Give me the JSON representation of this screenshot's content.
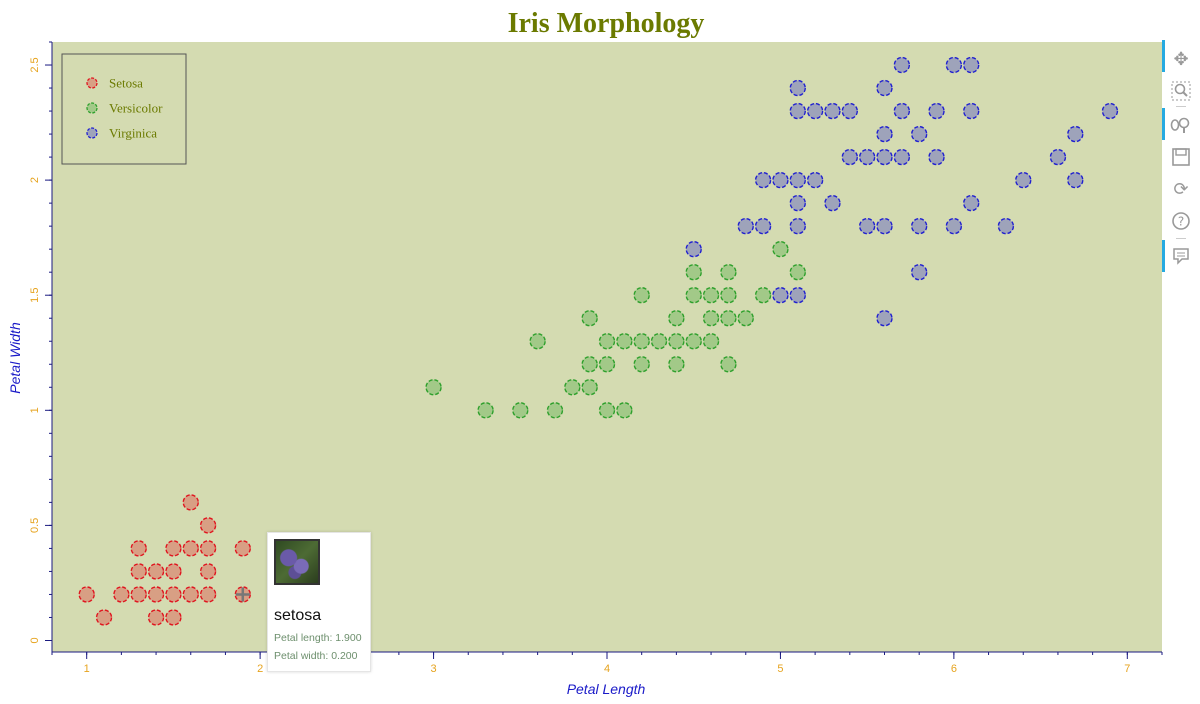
{
  "chart_data": {
    "type": "scatter",
    "title": "Iris Morphology",
    "xlabel": "Petal Length",
    "ylabel": "Petal Width",
    "xlim": [
      0.8,
      7.2
    ],
    "ylim": [
      -0.05,
      2.6
    ],
    "x_ticks": [
      1,
      2,
      3,
      4,
      5,
      6,
      7
    ],
    "y_ticks": [
      0,
      0.5,
      1,
      1.5,
      2,
      2.5
    ],
    "x_tick_labels": [
      "1",
      "2",
      "3",
      "4",
      "5",
      "6",
      "7"
    ],
    "y_tick_labels": [
      "0",
      "0.5",
      "1",
      "1.5",
      "2",
      "2.5"
    ],
    "grid": false,
    "legend_position": "top-left",
    "series": [
      {
        "name": "Setosa",
        "color": "#e0141e",
        "points": [
          [
            1.0,
            0.2
          ],
          [
            1.1,
            0.1
          ],
          [
            1.2,
            0.2
          ],
          [
            1.3,
            0.2
          ],
          [
            1.4,
            0.2
          ],
          [
            1.5,
            0.2
          ],
          [
            1.6,
            0.2
          ],
          [
            1.7,
            0.2
          ],
          [
            1.9,
            0.2
          ],
          [
            1.3,
            0.3
          ],
          [
            1.4,
            0.3
          ],
          [
            1.5,
            0.3
          ],
          [
            1.7,
            0.3
          ],
          [
            1.3,
            0.4
          ],
          [
            1.5,
            0.4
          ],
          [
            1.6,
            0.4
          ],
          [
            1.7,
            0.4
          ],
          [
            1.9,
            0.4
          ],
          [
            1.6,
            0.6
          ],
          [
            1.7,
            0.5
          ],
          [
            1.4,
            0.1
          ],
          [
            1.5,
            0.1
          ]
        ]
      },
      {
        "name": "Versicolor",
        "color": "#2ea02c",
        "points": [
          [
            3.0,
            1.1
          ],
          [
            3.3,
            1.0
          ],
          [
            3.5,
            1.0
          ],
          [
            3.7,
            1.0
          ],
          [
            4.0,
            1.0
          ],
          [
            4.1,
            1.0
          ],
          [
            3.8,
            1.1
          ],
          [
            3.9,
            1.1
          ],
          [
            3.9,
            1.2
          ],
          [
            4.0,
            1.2
          ],
          [
            4.2,
            1.2
          ],
          [
            4.4,
            1.2
          ],
          [
            4.7,
            1.2
          ],
          [
            3.6,
            1.3
          ],
          [
            4.0,
            1.3
          ],
          [
            4.1,
            1.3
          ],
          [
            4.2,
            1.3
          ],
          [
            4.3,
            1.3
          ],
          [
            4.4,
            1.3
          ],
          [
            4.5,
            1.3
          ],
          [
            4.6,
            1.3
          ],
          [
            3.9,
            1.4
          ],
          [
            4.4,
            1.4
          ],
          [
            4.6,
            1.4
          ],
          [
            4.7,
            1.4
          ],
          [
            4.8,
            1.4
          ],
          [
            4.2,
            1.5
          ],
          [
            4.5,
            1.5
          ],
          [
            4.6,
            1.5
          ],
          [
            4.7,
            1.5
          ],
          [
            4.9,
            1.5
          ],
          [
            4.5,
            1.6
          ],
          [
            4.7,
            1.6
          ],
          [
            5.1,
            1.6
          ],
          [
            5.0,
            1.7
          ]
        ]
      },
      {
        "name": "Virginica",
        "color": "#2020d0",
        "points": [
          [
            4.5,
            1.7
          ],
          [
            5.0,
            1.5
          ],
          [
            5.1,
            1.5
          ],
          [
            5.6,
            1.4
          ],
          [
            5.8,
            1.6
          ],
          [
            4.8,
            1.8
          ],
          [
            4.9,
            1.8
          ],
          [
            5.1,
            1.8
          ],
          [
            5.5,
            1.8
          ],
          [
            5.6,
            1.8
          ],
          [
            5.8,
            1.8
          ],
          [
            6.0,
            1.8
          ],
          [
            6.3,
            1.8
          ],
          [
            5.1,
            1.9
          ],
          [
            5.3,
            1.9
          ],
          [
            6.1,
            1.9
          ],
          [
            4.9,
            2.0
          ],
          [
            5.0,
            2.0
          ],
          [
            5.1,
            2.0
          ],
          [
            5.2,
            2.0
          ],
          [
            6.4,
            2.0
          ],
          [
            6.7,
            2.0
          ],
          [
            5.4,
            2.1
          ],
          [
            5.5,
            2.1
          ],
          [
            5.6,
            2.1
          ],
          [
            5.7,
            2.1
          ],
          [
            5.9,
            2.1
          ],
          [
            6.6,
            2.1
          ],
          [
            5.6,
            2.2
          ],
          [
            5.8,
            2.2
          ],
          [
            6.7,
            2.2
          ],
          [
            5.1,
            2.3
          ],
          [
            5.2,
            2.3
          ],
          [
            5.3,
            2.3
          ],
          [
            5.4,
            2.3
          ],
          [
            5.7,
            2.3
          ],
          [
            5.9,
            2.3
          ],
          [
            6.1,
            2.3
          ],
          [
            6.9,
            2.3
          ],
          [
            5.6,
            2.4
          ],
          [
            5.1,
            2.4
          ],
          [
            5.7,
            2.5
          ],
          [
            6.0,
            2.5
          ],
          [
            6.1,
            2.5
          ]
        ]
      }
    ],
    "tooltip": {
      "species": "setosa",
      "petal_length_text": "Petal length: 1.900",
      "petal_width_text": "Petal width: 0.200",
      "anchor": [
        1.9,
        0.2
      ]
    }
  },
  "colors": {
    "background": "#d4dbb1",
    "title": "#6b7a00",
    "tick_labels": "#e6a31e",
    "axis_labels": "#1a1ac8",
    "axis_lines": "#1a1a80",
    "legend_text": "#6b7a00"
  },
  "toolbar": {
    "tools": [
      "pan-icon",
      "box-zoom-icon",
      "wheel-zoom-icon",
      "save-icon",
      "reset-icon",
      "help-icon",
      "hover-icon"
    ]
  }
}
